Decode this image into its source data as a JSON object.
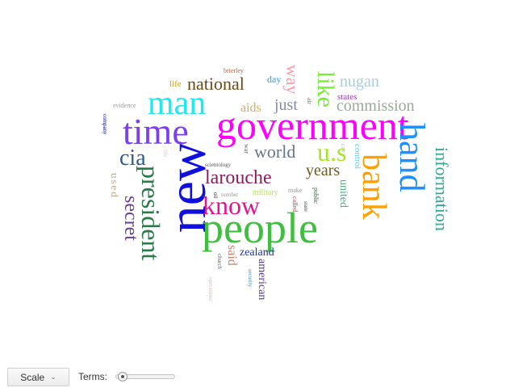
{
  "words": [
    {
      "text": "government",
      "color": "#ff00ff"
    },
    {
      "text": "new",
      "color": "#1010dd"
    },
    {
      "text": "people",
      "color": "#3fbf3f"
    },
    {
      "text": "time",
      "color": "#7b3ff2"
    },
    {
      "text": "man",
      "color": "#22e8f0"
    },
    {
      "text": "bank",
      "color": "#ff9f00"
    },
    {
      "text": "hand",
      "color": "#1e90ff"
    },
    {
      "text": "president",
      "color": "#2b7a4b"
    },
    {
      "text": "know",
      "color": "#e0188c"
    },
    {
      "text": "larouche",
      "color": "#8a1f5c"
    },
    {
      "text": "like",
      "color": "#77ee33"
    },
    {
      "text": "u.s",
      "color": "#a5e62a"
    },
    {
      "text": "information",
      "color": "#33aa99"
    },
    {
      "text": "national",
      "color": "#6b4a14"
    },
    {
      "text": "cia",
      "color": "#2e5c8a"
    },
    {
      "text": "secret",
      "color": "#6b3f9a"
    },
    {
      "text": "world",
      "color": "#667788"
    },
    {
      "text": "years",
      "color": "#6b5a22"
    },
    {
      "text": "commission",
      "color": "#9aaa99"
    },
    {
      "text": "nugan",
      "color": "#aaccdd"
    },
    {
      "text": "just",
      "color": "#8888aa"
    },
    {
      "text": "way",
      "color": "#f4a0b0"
    },
    {
      "text": "aids",
      "color": "#d0b060"
    },
    {
      "text": "zealand",
      "color": "#223399"
    },
    {
      "text": "said",
      "color": "#c08070"
    },
    {
      "text": "american",
      "color": "#553399"
    },
    {
      "text": "united",
      "color": "#55aa88"
    },
    {
      "text": "control",
      "color": "#66ccdd"
    },
    {
      "text": "states",
      "color": "#aa33cc"
    },
    {
      "text": "day",
      "color": "#3399dd"
    },
    {
      "text": "life",
      "color": "#d0a020"
    },
    {
      "text": "used",
      "color": "#bbaa88"
    },
    {
      "text": "military",
      "color": "#bbdd66"
    },
    {
      "text": "brierley",
      "color": "#aa6644"
    },
    {
      "text": "evidence",
      "color": "#999999"
    },
    {
      "text": "company",
      "color": "#000088"
    },
    {
      "text": "war",
      "color": "#666666"
    },
    {
      "text": "air",
      "color": "#aa6677"
    },
    {
      "text": "make",
      "color": "#999999"
    },
    {
      "text": "scientology",
      "color": "#555555"
    },
    {
      "text": "number",
      "color": "#999999"
    },
    {
      "text": "called",
      "color": "#aa4455"
    },
    {
      "text": "public",
      "color": "#336633"
    },
    {
      "text": "state",
      "color": "#444444"
    },
    {
      "text": "church",
      "color": "#666666"
    },
    {
      "text": "security",
      "color": "#5588aa"
    },
    {
      "text": "operations",
      "color": "#ddbbbb"
    },
    {
      "text": "oil",
      "color": "#222222"
    },
    {
      "text": "life",
      "color": "#cccccc"
    },
    {
      "text": "city",
      "color": "#bbbbbb"
    }
  ],
  "controls": {
    "scale_label": "Scale",
    "terms_label": "Terms:",
    "terms_value": 0.05
  },
  "icons": {
    "scale_dropdown": "chevron-down-icon"
  }
}
